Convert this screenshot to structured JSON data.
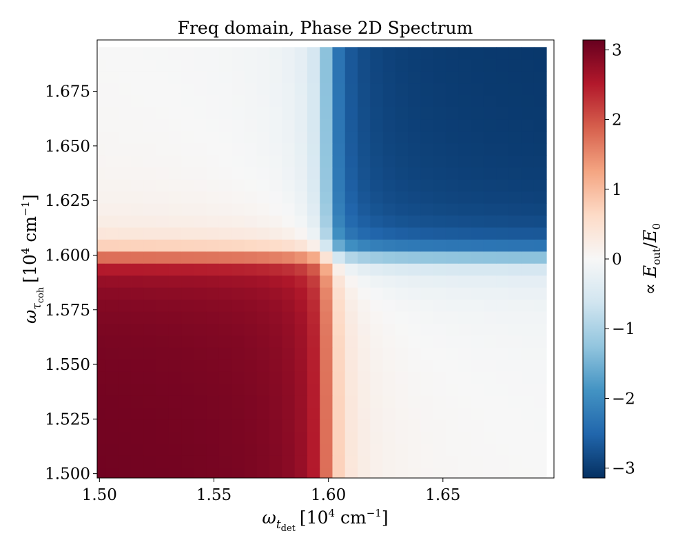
{
  "chart_data": {
    "type": "heatmap",
    "title": "Freq domain, Phase 2D Spectrum",
    "xlabel": {
      "omega": "ω",
      "sym": "t",
      "sub": "det",
      "unit_pre": "[10",
      "unit_exp": "4",
      "unit_mid": " cm",
      "unit_exp2": "−1",
      "unit_post": "]"
    },
    "ylabel": {
      "omega": "ω",
      "sym": "τ",
      "sub": "coh",
      "unit_pre": "[10",
      "unit_exp": "4",
      "unit_mid": " cm",
      "unit_exp2": "−1",
      "unit_post": "]"
    },
    "colorbar_label": {
      "prop": "∝ ",
      "e1": "E",
      "e1_sub": "out",
      "slash": "/",
      "e2": "E",
      "e2_sub": "0"
    },
    "x_range": [
      1.499,
      1.6985
    ],
    "y_range": [
      1.498,
      1.6985
    ],
    "x_ticks": [
      1.5,
      1.55,
      1.6,
      1.65
    ],
    "x_tick_labels": [
      "1.50",
      "1.55",
      "1.60",
      "1.65"
    ],
    "y_ticks": [
      1.5,
      1.525,
      1.55,
      1.575,
      1.6,
      1.625,
      1.65,
      1.675
    ],
    "y_tick_labels": [
      "1.500",
      "1.525",
      "1.550",
      "1.575",
      "1.600",
      "1.625",
      "1.650",
      "1.675"
    ],
    "grid_shape": [
      36,
      36
    ],
    "grid_start": 1.5,
    "grid_step": 0.0055,
    "resonance": 1.6,
    "color_range": [
      -3.14159,
      3.14159
    ],
    "colorbar_ticks": [
      3,
      2,
      1,
      0,
      -1,
      -2,
      -3
    ],
    "colorbar_tick_labels": [
      "3",
      "2",
      "1",
      "0",
      "−1",
      "−2",
      "−3"
    ],
    "colormap": "RdBu_r",
    "colormap_stops": [
      "#053061",
      "#2166ac",
      "#4393c3",
      "#92c5de",
      "#d1e5f0",
      "#f7f7f7",
      "#fddbc7",
      "#f4a582",
      "#d6604d",
      "#b2182b",
      "#67001f"
    ],
    "grid": false
  }
}
